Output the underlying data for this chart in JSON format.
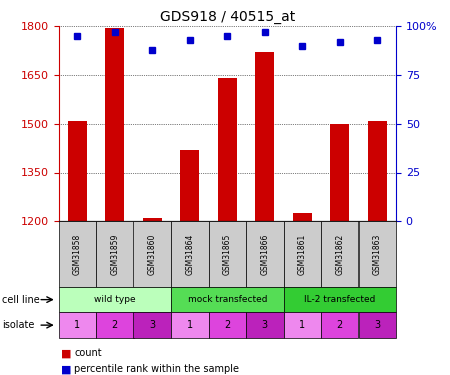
{
  "title": "GDS918 / 40515_at",
  "samples": [
    "GSM31858",
    "GSM31859",
    "GSM31860",
    "GSM31864",
    "GSM31865",
    "GSM31866",
    "GSM31861",
    "GSM31862",
    "GSM31863"
  ],
  "counts": [
    1510,
    1795,
    1210,
    1420,
    1640,
    1720,
    1225,
    1500,
    1510
  ],
  "percentile_ranks": [
    95,
    97,
    88,
    93,
    95,
    97,
    90,
    92,
    93
  ],
  "ylim_left": [
    1200,
    1800
  ],
  "ylim_right": [
    0,
    100
  ],
  "yticks_left": [
    1200,
    1350,
    1500,
    1650,
    1800
  ],
  "yticks_right": [
    0,
    25,
    50,
    75,
    100
  ],
  "cell_lines": [
    {
      "label": "wild type",
      "indices": [
        0,
        1,
        2
      ],
      "color": "#bbffbb"
    },
    {
      "label": "mock transfected",
      "indices": [
        3,
        4,
        5
      ],
      "color": "#55dd55"
    },
    {
      "label": "IL-2 transfected",
      "indices": [
        6,
        7,
        8
      ],
      "color": "#33cc33"
    }
  ],
  "isolates": [
    "1",
    "2",
    "3",
    "1",
    "2",
    "3",
    "1",
    "2",
    "3"
  ],
  "bar_color": "#cc0000",
  "dot_color": "#0000cc",
  "isolate_colors": [
    "#ee88ee",
    "#dd44dd",
    "#bb22bb"
  ],
  "left_label_color": "#cc0000",
  "right_label_color": "#0000cc",
  "sample_box_color": "#cccccc"
}
